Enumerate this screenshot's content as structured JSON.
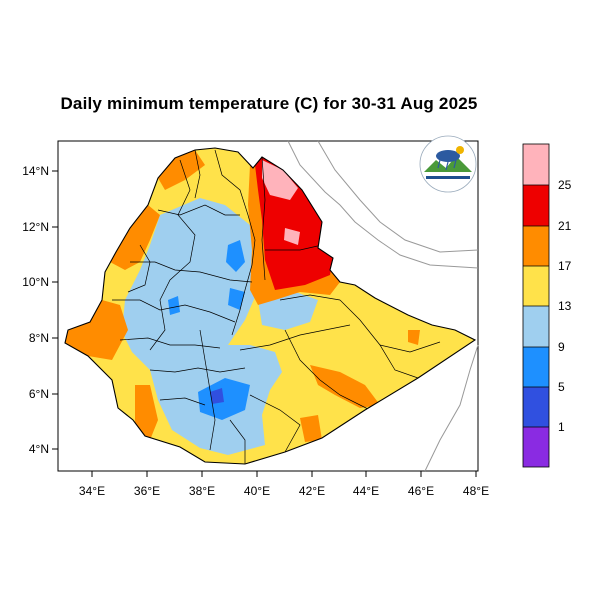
{
  "title": "Daily minimum temperature (C) for 30-31 Aug 2025",
  "map": {
    "lat_ticks": [
      "4°N",
      "6°N",
      "8°N",
      "10°N",
      "12°N",
      "14°N"
    ],
    "lon_ticks": [
      "34°E",
      "36°E",
      "38°E",
      "40°E",
      "42°E",
      "44°E",
      "46°E",
      "48°E"
    ],
    "extent": {
      "lon": [
        33.0,
        48.2
      ],
      "lat": [
        3.2,
        14.9
      ]
    }
  },
  "legend": {
    "labels": [
      "1",
      "5",
      "9",
      "13",
      "17",
      "21",
      "25"
    ],
    "colors": [
      "#8a2be2",
      "#3050e0",
      "#1e90ff",
      "#9fcfef",
      "#ffe24a",
      "#ff8c00",
      "#ee0000",
      "#ffb3bb"
    ]
  },
  "colors": {
    "very_cold": "#3050e0",
    "cold": "#1e90ff",
    "cool": "#9fcfef",
    "mild": "#ffe24a",
    "warm": "#ff8c00",
    "hot": "#ee0000",
    "very_hot": "#ffb3bb"
  }
}
